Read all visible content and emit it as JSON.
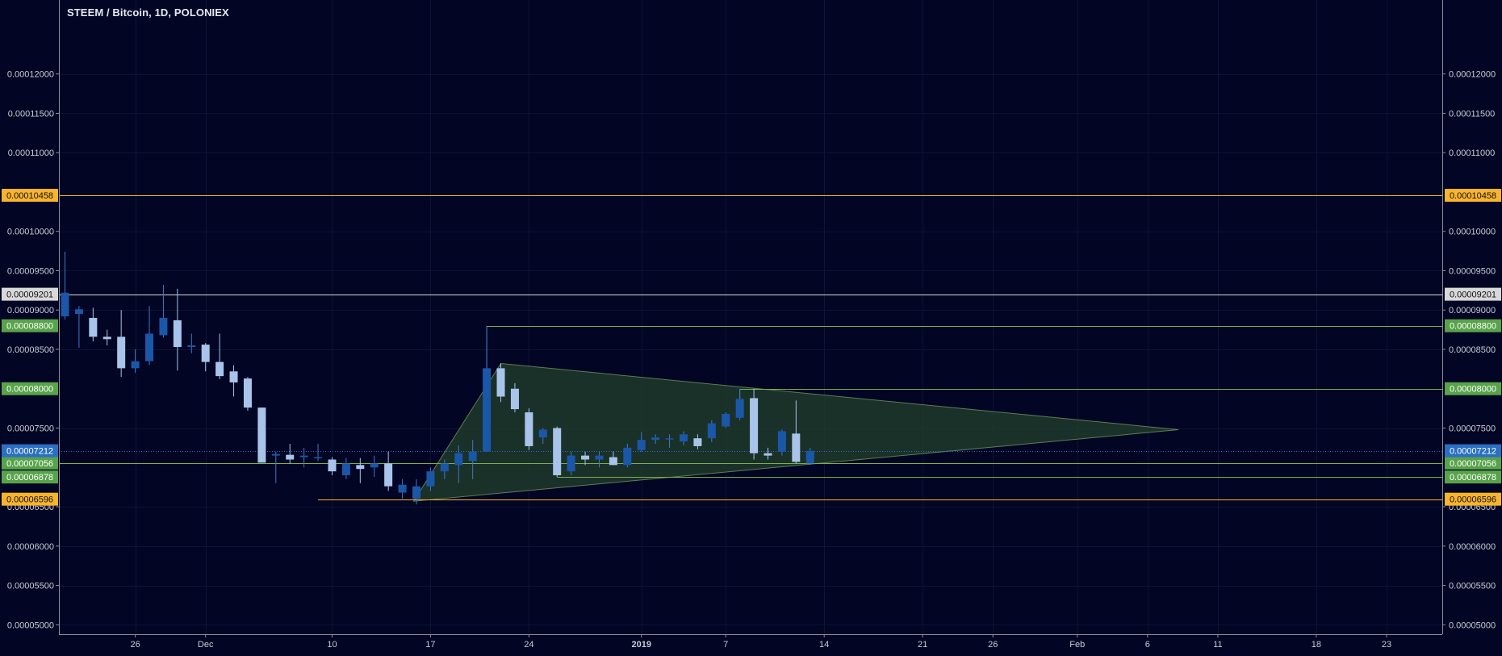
{
  "chart_data": {
    "type": "candlestick",
    "title": "STEEM / Bitcoin, 1D, POLONIEX",
    "xlabel": "",
    "ylabel": "",
    "ylim": [
      4.88e-05,
      0.0001294
    ],
    "grid": true,
    "colors": {
      "background": "#020523",
      "grid": "#0e1436",
      "axis_line": "#8c8f9e",
      "axis_text": "#c9ccd8",
      "candle_up": "#1a57a8",
      "candle_down": "#a9c4ea",
      "wick_up": "#4178c8",
      "wick_down": "#a9c4ea",
      "orange_line": "#f7b42c",
      "white_line": "#d8d8d8",
      "green_line": "#7bb04e",
      "green_label": "#58a34a",
      "current_price": "#2b6fc2",
      "triangle_fill": "#1f3a2a",
      "triangle_stroke": "#5d7d53"
    },
    "y_ticks": [
      "0.00005000",
      "0.00005500",
      "0.00006000",
      "0.00006500",
      "0.00007500",
      "0.00008500",
      "0.00009000",
      "0.00009500",
      "0.00010000",
      "0.00011000",
      "0.00011500",
      "0.00012000"
    ],
    "y_tick_values": [
      5e-05,
      5.5e-05,
      6e-05,
      6.5e-05,
      7.5e-05,
      8.5e-05,
      9e-05,
      9.5e-05,
      0.0001,
      0.00011,
      0.000115,
      0.00012
    ],
    "x_ticks": [
      {
        "label": "26",
        "day": 5,
        "bold": false
      },
      {
        "label": "Dec",
        "day": 10,
        "bold": false
      },
      {
        "label": "10",
        "day": 19,
        "bold": false
      },
      {
        "label": "17",
        "day": 26,
        "bold": false
      },
      {
        "label": "24",
        "day": 33,
        "bold": false
      },
      {
        "label": "2019",
        "day": 41,
        "bold": true
      },
      {
        "label": "7",
        "day": 47,
        "bold": false
      },
      {
        "label": "14",
        "day": 54,
        "bold": false
      },
      {
        "label": "21",
        "day": 61,
        "bold": false
      },
      {
        "label": "26",
        "day": 66,
        "bold": false
      },
      {
        "label": "Feb",
        "day": 72,
        "bold": false
      },
      {
        "label": "6",
        "day": 77,
        "bold": false
      },
      {
        "label": "11",
        "day": 82,
        "bold": false
      },
      {
        "label": "18",
        "day": 89,
        "bold": false
      },
      {
        "label": "23",
        "day": 94,
        "bold": false
      }
    ],
    "candles": [
      {
        "d": 0,
        "o": 8.92e-05,
        "h": 9.74e-05,
        "l": 8.88e-05,
        "c": 9.22e-05
      },
      {
        "d": 1,
        "o": 8.95e-05,
        "h": 9.05e-05,
        "l": 8.52e-05,
        "c": 9.01e-05
      },
      {
        "d": 2,
        "o": 8.9e-05,
        "h": 9.03e-05,
        "l": 8.6e-05,
        "c": 8.66e-05
      },
      {
        "d": 3,
        "o": 8.66e-05,
        "h": 8.75e-05,
        "l": 8.55e-05,
        "c": 8.63e-05
      },
      {
        "d": 4,
        "o": 8.66e-05,
        "h": 9e-05,
        "l": 8.15e-05,
        "c": 8.26e-05
      },
      {
        "d": 5,
        "o": 8.26e-05,
        "h": 8.5e-05,
        "l": 8.2e-05,
        "c": 8.35e-05
      },
      {
        "d": 6,
        "o": 8.35e-05,
        "h": 9.05e-05,
        "l": 8.3e-05,
        "c": 8.7e-05
      },
      {
        "d": 7,
        "o": 8.68e-05,
        "h": 9.32e-05,
        "l": 8.65e-05,
        "c": 8.9e-05
      },
      {
        "d": 8,
        "o": 8.87e-05,
        "h": 9.27e-05,
        "l": 8.23e-05,
        "c": 8.53e-05
      },
      {
        "d": 9,
        "o": 8.53e-05,
        "h": 8.7e-05,
        "l": 8.45e-05,
        "c": 8.55e-05
      },
      {
        "d": 10,
        "o": 8.56e-05,
        "h": 8.58e-05,
        "l": 8.22e-05,
        "c": 8.34e-05
      },
      {
        "d": 11,
        "o": 8.34e-05,
        "h": 8.7e-05,
        "l": 8.12e-05,
        "c": 8.16e-05
      },
      {
        "d": 12,
        "o": 8.22e-05,
        "h": 8.3e-05,
        "l": 7.9e-05,
        "c": 8.08e-05
      },
      {
        "d": 13,
        "o": 8.13e-05,
        "h": 8.15e-05,
        "l": 7.72e-05,
        "c": 7.76e-05
      },
      {
        "d": 14,
        "o": 7.76e-05,
        "h": 7.76e-05,
        "l": 7.06e-05,
        "c": 7.06e-05
      },
      {
        "d": 15,
        "o": 7.15e-05,
        "h": 7.2e-05,
        "l": 6.8e-05,
        "c": 7.17e-05
      },
      {
        "d": 16,
        "o": 7.16e-05,
        "h": 7.3e-05,
        "l": 7.05e-05,
        "c": 7.1e-05
      },
      {
        "d": 17,
        "o": 7.13e-05,
        "h": 7.25e-05,
        "l": 7e-05,
        "c": 7.15e-05
      },
      {
        "d": 18,
        "o": 7.12e-05,
        "h": 7.3e-05,
        "l": 7.08e-05,
        "c": 7.13e-05
      },
      {
        "d": 19,
        "o": 7.1e-05,
        "h": 7.13e-05,
        "l": 6.9e-05,
        "c": 6.95e-05
      },
      {
        "d": 20,
        "o": 6.9e-05,
        "h": 7.12e-05,
        "l": 6.85e-05,
        "c": 7.05e-05
      },
      {
        "d": 21,
        "o": 7.03e-05,
        "h": 7.12e-05,
        "l": 6.8e-05,
        "c": 6.98e-05
      },
      {
        "d": 22,
        "o": 7e-05,
        "h": 7.15e-05,
        "l": 6.88e-05,
        "c": 7.05e-05
      },
      {
        "d": 23,
        "o": 7.05e-05,
        "h": 7.2e-05,
        "l": 6.7e-05,
        "c": 6.76e-05
      },
      {
        "d": 24,
        "o": 6.68e-05,
        "h": 6.85e-05,
        "l": 6.6e-05,
        "c": 6.78e-05
      },
      {
        "d": 25,
        "o": 6.6e-05,
        "h": 6.85e-05,
        "l": 6.53e-05,
        "c": 6.76e-05
      },
      {
        "d": 26,
        "o": 6.76e-05,
        "h": 7e-05,
        "l": 6.7e-05,
        "c": 6.95e-05
      },
      {
        "d": 27,
        "o": 6.95e-05,
        "h": 7.1e-05,
        "l": 6.85e-05,
        "c": 7.05e-05
      },
      {
        "d": 28,
        "o": 7.03e-05,
        "h": 7.28e-05,
        "l": 6.8e-05,
        "c": 7.18e-05
      },
      {
        "d": 29,
        "o": 7.08e-05,
        "h": 7.35e-05,
        "l": 6.85e-05,
        "c": 7.2e-05
      },
      {
        "d": 30,
        "o": 7.2e-05,
        "h": 8.8e-05,
        "l": 7.2e-05,
        "c": 8.26e-05
      },
      {
        "d": 31,
        "o": 8.26e-05,
        "h": 8.32e-05,
        "l": 7.83e-05,
        "c": 7.9e-05
      },
      {
        "d": 32,
        "o": 8e-05,
        "h": 8.07e-05,
        "l": 7.7e-05,
        "c": 7.74e-05
      },
      {
        "d": 33,
        "o": 7.7e-05,
        "h": 7.75e-05,
        "l": 7.22e-05,
        "c": 7.27e-05
      },
      {
        "d": 34,
        "o": 7.38e-05,
        "h": 7.5e-05,
        "l": 7.3e-05,
        "c": 7.48e-05
      },
      {
        "d": 35,
        "o": 7.5e-05,
        "h": 7.52e-05,
        "l": 6.88e-05,
        "c": 6.9e-05
      },
      {
        "d": 36,
        "o": 6.95e-05,
        "h": 7.2e-05,
        "l": 6.9e-05,
        "c": 7.15e-05
      },
      {
        "d": 37,
        "o": 7.15e-05,
        "h": 7.2e-05,
        "l": 7.03e-05,
        "c": 7.1e-05
      },
      {
        "d": 38,
        "o": 7.1e-05,
        "h": 7.2e-05,
        "l": 7e-05,
        "c": 7.15e-05
      },
      {
        "d": 39,
        "o": 7.13e-05,
        "h": 7.2e-05,
        "l": 7.03e-05,
        "c": 7.03e-05
      },
      {
        "d": 40,
        "o": 7.03e-05,
        "h": 7.3e-05,
        "l": 7e-05,
        "c": 7.25e-05
      },
      {
        "d": 41,
        "o": 7.22e-05,
        "h": 7.45e-05,
        "l": 7.2e-05,
        "c": 7.35e-05
      },
      {
        "d": 42,
        "o": 7.35e-05,
        "h": 7.42e-05,
        "l": 7.3e-05,
        "c": 7.38e-05
      },
      {
        "d": 43,
        "o": 7.37e-05,
        "h": 7.42e-05,
        "l": 7.25e-05,
        "c": 7.37e-05
      },
      {
        "d": 44,
        "o": 7.33e-05,
        "h": 7.46e-05,
        "l": 7.28e-05,
        "c": 7.42e-05
      },
      {
        "d": 45,
        "o": 7.37e-05,
        "h": 7.42e-05,
        "l": 7.23e-05,
        "c": 7.27e-05
      },
      {
        "d": 46,
        "o": 7.37e-05,
        "h": 7.6e-05,
        "l": 7.32e-05,
        "c": 7.56e-05
      },
      {
        "d": 47,
        "o": 7.52e-05,
        "h": 7.7e-05,
        "l": 7.5e-05,
        "c": 7.68e-05
      },
      {
        "d": 48,
        "o": 7.63e-05,
        "h": 8e-05,
        "l": 7.6e-05,
        "c": 7.87e-05
      },
      {
        "d": 49,
        "o": 7.88e-05,
        "h": 8e-05,
        "l": 7.1e-05,
        "c": 7.18e-05
      },
      {
        "d": 50,
        "o": 7.18e-05,
        "h": 7.25e-05,
        "l": 7.1e-05,
        "c": 7.15e-05
      },
      {
        "d": 51,
        "o": 7.2e-05,
        "h": 7.48e-05,
        "l": 7.15e-05,
        "c": 7.46e-05
      },
      {
        "d": 52,
        "o": 7.43e-05,
        "h": 7.85e-05,
        "l": 7.05e-05,
        "c": 7.07e-05
      },
      {
        "d": 53,
        "o": 7.05e-05,
        "h": 7.25e-05,
        "l": 7.03e-05,
        "c": 7.21e-05
      }
    ],
    "horizontal_lines": [
      {
        "value": 0.00010458,
        "label": "0.00010458",
        "color": "#f7b42c",
        "label_bg": "#f7b42c",
        "label_text": "#111111",
        "from_day": null
      },
      {
        "value": 9.201e-05,
        "label": "0.00009201",
        "color": "#d8d8d8",
        "label_bg": "#d8d8d8",
        "label_text": "#111111",
        "from_day": null
      },
      {
        "value": 8.8e-05,
        "label": "0.00008800",
        "color": "#7bb04e",
        "label_bg": "#58a34a",
        "label_text": "#ffffff",
        "from_day": 30
      },
      {
        "value": 8e-05,
        "label": "0.00008000",
        "color": "#7bb04e",
        "label_bg": "#58a34a",
        "label_text": "#ffffff",
        "from_day": 48
      },
      {
        "value": 7.056e-05,
        "label": "0.00007056",
        "color": "#7bb04e",
        "label_bg": "#58a34a",
        "label_text": "#ffffff",
        "from_day": null
      },
      {
        "value": 6.878e-05,
        "label": "0.00006878",
        "color": "#7bb04e",
        "label_bg": "#58a34a",
        "label_text": "#ffffff",
        "from_day": 35
      },
      {
        "value": 6.596e-05,
        "label": "0.00006596",
        "color": "#f7b42c",
        "label_bg": "#f7b42c",
        "label_text": "#111111",
        "from_day": 18
      }
    ],
    "current_price": {
      "value": 7.212e-05,
      "label": "0.00007212",
      "color": "#2b6fc2"
    },
    "triangle": [
      [
        24.8,
        6.57e-05
      ],
      [
        31,
        8.32e-05
      ],
      [
        79.2,
        7.48e-05
      ]
    ]
  }
}
